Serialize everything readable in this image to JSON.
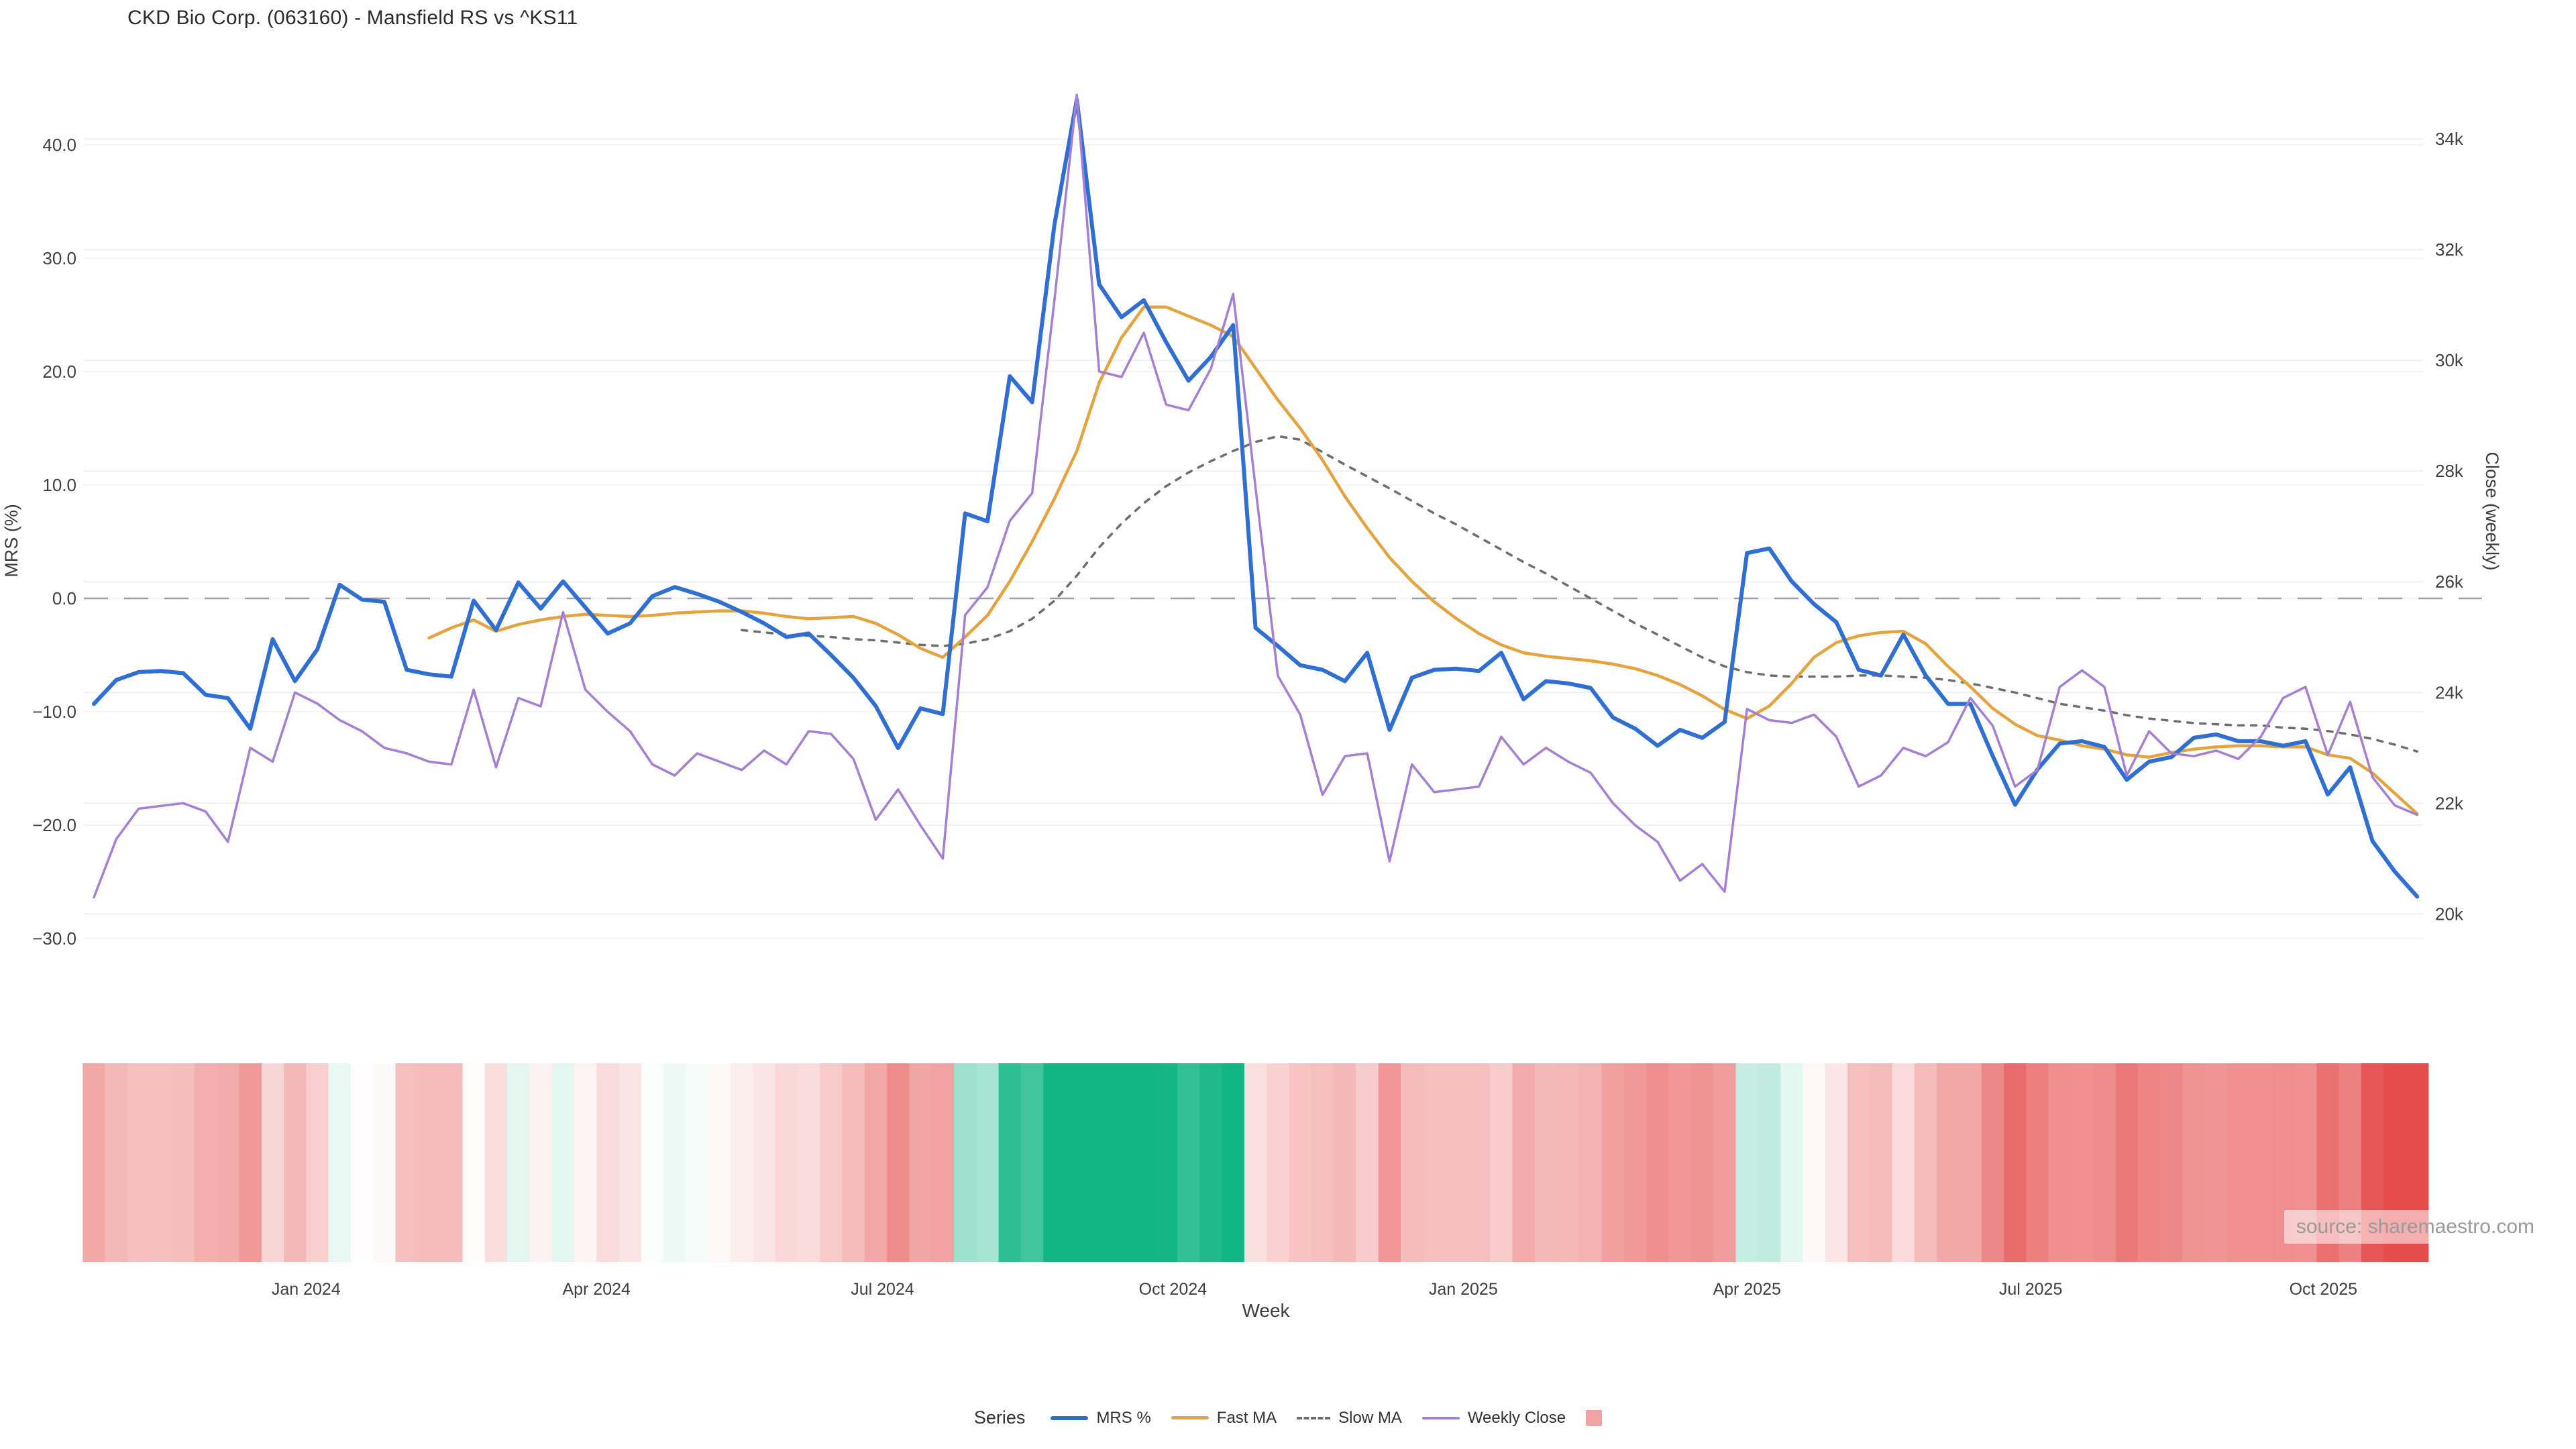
{
  "title": "CKD Bio Corp. (063160) - Mansfield RS vs ^KS11",
  "source": "source: sharemaestro.com",
  "axes": {
    "left": {
      "title": "MRS (%)",
      "ticks": [
        {
          "v": 40,
          "label": "40.0"
        },
        {
          "v": 30,
          "label": "30.0"
        },
        {
          "v": 20,
          "label": "20.0"
        },
        {
          "v": 10,
          "label": "10.0"
        },
        {
          "v": 0,
          "label": "0.0"
        },
        {
          "v": -10,
          "label": "−10.0"
        },
        {
          "v": -20,
          "label": "−20.0"
        },
        {
          "v": -30,
          "label": "−30.0"
        }
      ]
    },
    "right": {
      "title": "Close (weekly)",
      "ticks": [
        {
          "v": 34,
          "label": "34k"
        },
        {
          "v": 32,
          "label": "32k"
        },
        {
          "v": 30,
          "label": "30k"
        },
        {
          "v": 28,
          "label": "28k"
        },
        {
          "v": 26,
          "label": "26k"
        },
        {
          "v": 24,
          "label": "24k"
        },
        {
          "v": 22,
          "label": "22k"
        },
        {
          "v": 20,
          "label": "20k"
        }
      ]
    },
    "x": {
      "title": "Week",
      "months": [
        {
          "label": "Jan 2024",
          "week": 9.5
        },
        {
          "label": "Apr 2024",
          "week": 22.5
        },
        {
          "label": "Jul 2024",
          "week": 35.3
        },
        {
          "label": "Oct 2024",
          "week": 48.3
        },
        {
          "label": "Jan 2025",
          "week": 61.3
        },
        {
          "label": "Apr 2025",
          "week": 74.0
        },
        {
          "label": "Jul 2025",
          "week": 86.7
        },
        {
          "label": "Oct 2025",
          "week": 99.8
        }
      ]
    }
  },
  "legend": {
    "label": "Series",
    "items": [
      {
        "label": "MRS %",
        "type": "line",
        "color": "#2f6fd4",
        "thickness": 6
      },
      {
        "label": "Fast MA",
        "type": "line",
        "color": "#e6a23c",
        "thickness": 5
      },
      {
        "label": "Slow MA",
        "type": "dash",
        "color": "#6e6e6e",
        "thickness": 4
      },
      {
        "label": "Weekly Close",
        "type": "line",
        "color": "#a47fd6",
        "thickness": 4
      },
      {
        "label": "",
        "type": "square",
        "color": "#f2a4a4",
        "thickness": 0
      }
    ]
  },
  "chart_data": {
    "type": "line",
    "title": "CKD Bio Corp. (063160) - Mansfield RS vs ^KS11",
    "xlabel": "Week",
    "x_unit": "week_index_0_to_104_weekly_from_late_Oct_2023_to_early_Nov_2025",
    "left_ylabel": "MRS (%)",
    "right_ylabel": "Close (weekly)",
    "left_ylim": [
      -32,
      45.5
    ],
    "right_ylim_k": [
      19.4,
      34.9
    ],
    "grid": "faint horizontal",
    "zero_line": {
      "value": 0,
      "axis": "left",
      "style": "long-dash",
      "color": "#8f8fa0"
    },
    "series": [
      {
        "name": "MRS %",
        "axis": "left",
        "color": "#2f6fd4",
        "width": 6,
        "style": "solid",
        "start_week": 0,
        "values": [
          -9.3,
          -7.2,
          -6.5,
          -6.4,
          -6.6,
          -8.5,
          -8.8,
          -11.5,
          -3.6,
          -7.3,
          -4.5,
          1.2,
          -0.1,
          -0.3,
          -6.3,
          -6.7,
          -6.9,
          -0.2,
          -2.8,
          1.4,
          -0.9,
          1.5,
          -0.8,
          -3.1,
          -2.2,
          0.2,
          1.0,
          0.4,
          -0.3,
          -1.2,
          -2.2,
          -3.4,
          -3.1,
          -5.0,
          -7.0,
          -9.5,
          -13.2,
          -9.7,
          -10.2,
          7.5,
          6.8,
          19.6,
          17.3,
          33.0,
          44.0,
          27.7,
          24.8,
          26.3,
          22.6,
          19.2,
          21.3,
          24.1,
          -2.6,
          -4.2,
          -5.9,
          -6.3,
          -7.3,
          -4.8,
          -11.6,
          -7.0,
          -6.3,
          -6.2,
          -6.4,
          -4.8,
          -8.9,
          -7.3,
          -7.5,
          -7.9,
          -10.5,
          -11.5,
          -13.0,
          -11.6,
          -12.3,
          -10.9,
          4.0,
          4.4,
          1.5,
          -0.5,
          -2.1,
          -6.3,
          -6.8,
          -3.2,
          -6.8,
          -9.3,
          -9.3,
          -13.9,
          -18.2,
          -15.1,
          -12.8,
          -12.6,
          -13.1,
          -16.0,
          -14.4,
          -14.0,
          -12.3,
          -12.0,
          -12.6,
          -12.6,
          -13.0,
          -12.6,
          -17.3,
          -14.9,
          -21.4,
          -24.1,
          -26.3
        ]
      },
      {
        "name": "Fast MA",
        "axis": "left",
        "color": "#e6a23c",
        "width": 4.5,
        "style": "solid",
        "start_week": 15,
        "values": [
          -3.5,
          -2.6,
          -1.9,
          -2.9,
          -2.3,
          -1.9,
          -1.6,
          -1.4,
          -1.5,
          -1.6,
          -1.5,
          -1.3,
          -1.2,
          -1.1,
          -1.1,
          -1.3,
          -1.6,
          -1.8,
          -1.7,
          -1.6,
          -2.2,
          -3.2,
          -4.4,
          -5.2,
          -3.4,
          -1.5,
          1.5,
          5.0,
          8.8,
          13.0,
          19.0,
          23.0,
          25.7,
          25.7,
          24.9,
          24.1,
          23.1,
          20.3,
          17.5,
          15.0,
          12.2,
          9.0,
          6.2,
          3.6,
          1.5,
          -0.3,
          -1.8,
          -3.1,
          -4.1,
          -4.8,
          -5.1,
          -5.3,
          -5.5,
          -5.8,
          -6.2,
          -6.8,
          -7.6,
          -8.6,
          -9.8,
          -10.6,
          -9.5,
          -7.5,
          -5.2,
          -3.9,
          -3.3,
          -3.0,
          -2.9,
          -4.0,
          -6.0,
          -7.8,
          -9.7,
          -11.1,
          -12.1,
          -12.5,
          -13.0,
          -13.3,
          -13.8,
          -14.0,
          -13.6,
          -13.3,
          -13.1,
          -13.0,
          -13.0,
          -13.1,
          -13.1,
          -13.8,
          -14.1,
          -15.4,
          -17.2,
          -19.0
        ]
      },
      {
        "name": "Slow MA",
        "axis": "left",
        "color": "#6e6e6e",
        "width": 3.5,
        "style": "dotted",
        "start_week": 29,
        "values": [
          -2.8,
          -3.0,
          -3.2,
          -3.3,
          -3.4,
          -3.6,
          -3.7,
          -3.9,
          -4.1,
          -4.2,
          -4.0,
          -3.6,
          -2.9,
          -1.8,
          -0.2,
          2.0,
          4.5,
          6.6,
          8.4,
          9.9,
          11.1,
          12.1,
          13.0,
          13.8,
          14.3,
          14.0,
          12.9,
          11.8,
          10.75,
          9.7,
          8.6,
          7.5,
          6.5,
          5.4,
          4.3,
          3.2,
          2.2,
          1.1,
          0.0,
          -1.1,
          -2.2,
          -3.2,
          -4.2,
          -5.2,
          -6.0,
          -6.5,
          -6.8,
          -6.9,
          -6.9,
          -6.9,
          -6.8,
          -6.8,
          -6.9,
          -7.0,
          -7.2,
          -7.5,
          -7.9,
          -8.3,
          -8.8,
          -9.3,
          -9.6,
          -9.9,
          -10.3,
          -10.6,
          -10.8,
          -11.0,
          -11.1,
          -11.2,
          -11.2,
          -11.4,
          -11.5,
          -11.7,
          -12.0,
          -12.4,
          -12.9,
          -13.5
        ]
      },
      {
        "name": "Weekly Close",
        "axis": "right",
        "unit": "k",
        "color": "#a47fd6",
        "width": 3.5,
        "style": "solid",
        "start_week": 0,
        "values": [
          20.3,
          21.35,
          21.9,
          21.95,
          22.0,
          21.85,
          21.3,
          23.0,
          22.75,
          24.0,
          23.8,
          23.5,
          23.3,
          23.0,
          22.9,
          22.75,
          22.7,
          24.05,
          22.65,
          23.9,
          23.75,
          25.45,
          24.05,
          23.65,
          23.3,
          22.7,
          22.5,
          22.9,
          22.75,
          22.6,
          22.95,
          22.7,
          23.3,
          23.25,
          22.8,
          21.7,
          22.25,
          21.6,
          21.0,
          25.4,
          25.9,
          27.1,
          27.6,
          31.1,
          34.8,
          29.8,
          29.7,
          30.5,
          29.2,
          29.1,
          29.85,
          31.2,
          27.7,
          24.3,
          23.6,
          22.15,
          22.85,
          22.9,
          20.95,
          22.7,
          22.2,
          22.25,
          22.3,
          23.2,
          22.7,
          23.0,
          22.75,
          22.55,
          22.0,
          21.6,
          21.3,
          20.6,
          20.9,
          20.4,
          23.7,
          23.5,
          23.45,
          23.6,
          23.2,
          22.3,
          22.5,
          23.0,
          22.85,
          23.1,
          23.9,
          23.4,
          22.3,
          22.6,
          24.1,
          24.4,
          24.1,
          22.5,
          23.3,
          22.9,
          22.85,
          22.95,
          22.8,
          23.2,
          23.9,
          24.1,
          22.87,
          23.83,
          22.47,
          21.96,
          21.79
        ]
      }
    ],
    "heatmap": {
      "description": "weekly strip below chart, color-coded from MRS % values",
      "source_series": "MRS %",
      "positive_color": "#12b584",
      "negative_color": "#e64c4c",
      "neutral_color": "#ffffff",
      "scale_cap": 23
    }
  }
}
